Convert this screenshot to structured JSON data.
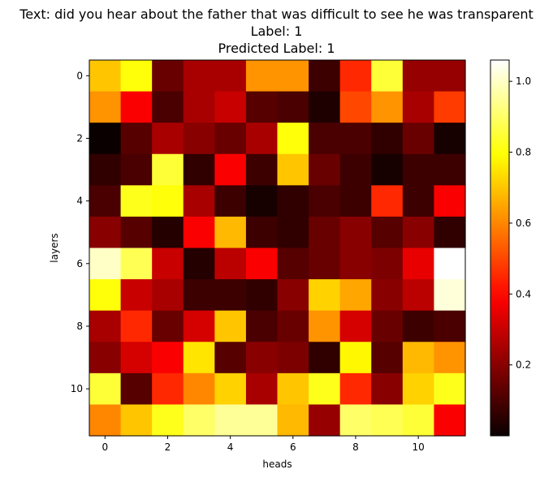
{
  "chart_data": {
    "type": "heatmap",
    "title_lines": [
      "Text: did you hear about the father that was difficult to see he was transparent",
      "Label: 1",
      "Predicted Label: 1"
    ],
    "xlabel": "heads",
    "ylabel": "layers",
    "x_ticks": [
      0,
      2,
      4,
      6,
      8,
      10
    ],
    "y_ticks": [
      0,
      2,
      4,
      6,
      8,
      10
    ],
    "colormap": "hot",
    "colorbar": {
      "min": 0.0,
      "max": 1.06,
      "ticks": [
        0.2,
        0.4,
        0.6,
        0.8,
        1.0
      ],
      "tick_labels": [
        "0.2",
        "0.4",
        "0.6",
        "0.8",
        "1.0"
      ]
    },
    "values": [
      [
        0.7,
        0.8,
        0.15,
        0.25,
        0.25,
        0.62,
        0.62,
        0.08,
        0.45,
        0.85,
        0.22,
        0.22
      ],
      [
        0.62,
        0.38,
        0.1,
        0.25,
        0.3,
        0.12,
        0.1,
        0.03,
        0.5,
        0.62,
        0.25,
        0.48
      ],
      [
        0.0,
        0.12,
        0.25,
        0.2,
        0.15,
        0.25,
        0.8,
        0.1,
        0.1,
        0.06,
        0.15,
        0.02
      ],
      [
        0.06,
        0.1,
        0.85,
        0.06,
        0.38,
        0.08,
        0.7,
        0.15,
        0.08,
        0.02,
        0.08,
        0.08
      ],
      [
        0.1,
        0.82,
        0.8,
        0.25,
        0.08,
        0.02,
        0.06,
        0.1,
        0.08,
        0.45,
        0.08,
        0.38
      ],
      [
        0.2,
        0.12,
        0.04,
        0.38,
        0.68,
        0.08,
        0.06,
        0.15,
        0.2,
        0.12,
        0.2,
        0.06
      ],
      [
        1.0,
        0.88,
        0.3,
        0.04,
        0.28,
        0.38,
        0.12,
        0.15,
        0.2,
        0.18,
        0.35,
        1.06
      ],
      [
        0.8,
        0.3,
        0.25,
        0.08,
        0.08,
        0.06,
        0.2,
        0.72,
        0.65,
        0.2,
        0.28,
        1.02
      ],
      [
        0.25,
        0.45,
        0.15,
        0.32,
        0.7,
        0.1,
        0.15,
        0.62,
        0.32,
        0.15,
        0.08,
        0.1
      ],
      [
        0.2,
        0.32,
        0.38,
        0.75,
        0.12,
        0.2,
        0.18,
        0.06,
        0.78,
        0.12,
        0.68,
        0.62
      ],
      [
        0.85,
        0.12,
        0.45,
        0.6,
        0.72,
        0.25,
        0.7,
        0.82,
        0.45,
        0.2,
        0.72,
        0.82
      ],
      [
        0.6,
        0.7,
        0.82,
        0.9,
        0.95,
        0.95,
        0.68,
        0.22,
        0.9,
        0.88,
        0.85,
        0.38
      ]
    ]
  }
}
